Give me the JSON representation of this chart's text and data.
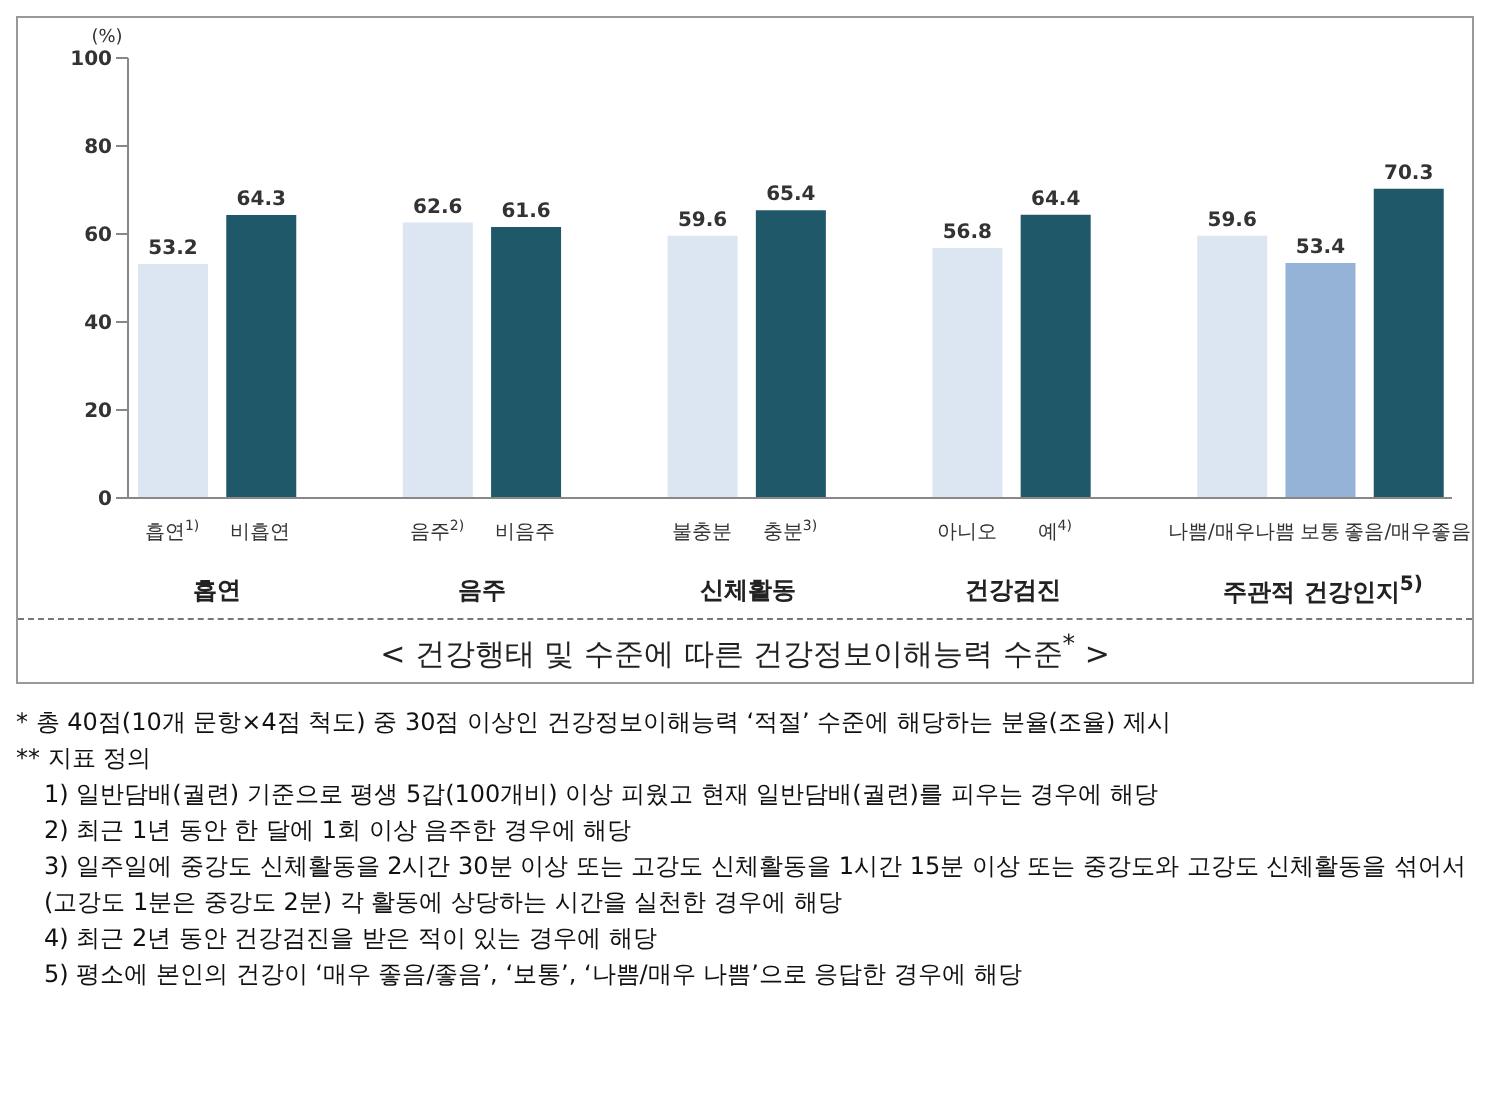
{
  "chart_data": {
    "type": "bar",
    "title": "< 건강행태 및 수준에 따른 건강정보이해능력 수준$^{*}$ >",
    "ylabel": "(%)",
    "categories": [
      "흡연$^{1)}$",
      "비흡연",
      null,
      "음주$^{2)}$",
      "비음주",
      null,
      "불충분",
      "충분$^{3)}$",
      null,
      "아니오",
      "예$^{4)}$",
      null,
      "나쁨/매우나쁨",
      "보통",
      "좋음/매우좋음"
    ],
    "values": [
      53.2,
      64.3,
      null,
      62.6,
      61.6,
      null,
      59.6,
      65.4,
      null,
      56.8,
      64.4,
      null,
      59.6,
      53.4,
      70.3
    ],
    "colors": [
      "#dce6f2",
      "#1f5869",
      null,
      "#dce6f2",
      "#1f5869",
      null,
      "#dce6f2",
      "#1f5869",
      null,
      "#dce6f2",
      "#1f5869",
      null,
      "#dce6f2",
      "#95b3d7",
      "#1f5869"
    ],
    "data_labels": true,
    "ylim": [
      0,
      100
    ],
    "yticks": [
      0,
      20,
      40,
      60,
      80,
      100
    ],
    "grid": false,
    "legend": false,
    "annotations": [
      "흡연",
      "음주",
      "신체활동",
      "건강검진",
      "주관적 건강인지$^{5)}$",
      "* 총 40점(10개 문항×4점 척도) 중 30점 이상인 건강정보이해능력 ‘적절’ 수준에 해당하는 분율(조율) 제시",
      "** 지표 정의",
      "1) 일반담배(궐련) 기준으로 평생 5갑(100개비) 이상 피웠고 현재 일반담배(궐련)를 피우는 경우에 해당",
      "2) 최근 1년 동안 한 달에 1회 이상 음주한 경우에 해당",
      "3) 일주일에 중강도 신체활동을 2시간 30분 이상 또는 고강도 신체활동을 1시간 15분 이상 또는 중강도와 고강도 신체활동을 섞어서(고강도 1분은 중강도 2분) 각 활동에 상당하는 시간을 실천한 경우에 해당",
      "4) 최근 2년 동안 건강검진을 받은 적이 있는 경우에 해당",
      "5) 평소에 본인의 건강이 ‘매우 좋음/좋음’, ‘보통’, ‘나쁨/매우 나쁨’으로 응답한 경우에 해당"
    ]
  }
}
